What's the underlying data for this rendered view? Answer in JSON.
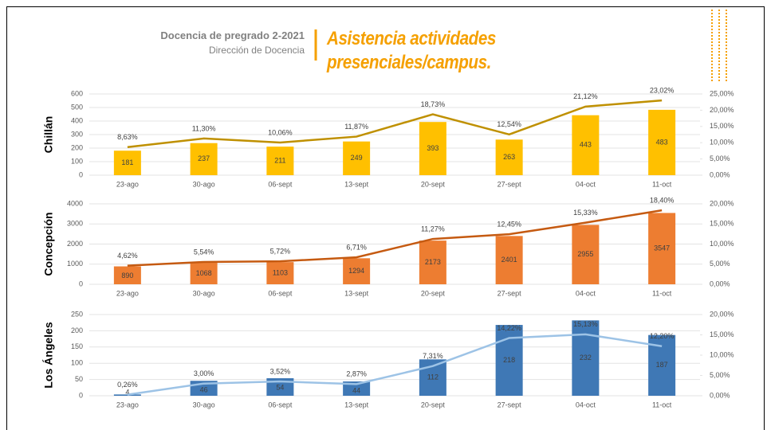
{
  "header": {
    "subtitle": "Docencia de pregrado 2-2021",
    "department": "Dirección de Docencia",
    "title": "Asistencia actividades presenciales/campus."
  },
  "chart_data": [
    {
      "type": "bar",
      "y_label": "Chillán",
      "categories": [
        "23-ago",
        "30-ago",
        "06-sept",
        "13-sept",
        "20-sept",
        "27-sept",
        "04-oct",
        "11-oct"
      ],
      "series": [
        {
          "color": "#ffc000",
          "values": [
            181,
            237,
            211,
            249,
            393,
            263,
            443,
            483
          ]
        },
        {
          "type": "line",
          "axis": "y2",
          "color": "#bf9000",
          "values": [
            8.63,
            11.3,
            10.06,
            11.87,
            18.73,
            12.54,
            21.12,
            23.02
          ],
          "value_labels": [
            "8,63%",
            "11,30%",
            "10,06%",
            "11,87%",
            "18,73%",
            "12,54%",
            "21,12%",
            "23,02%"
          ]
        }
      ],
      "ylim": [
        0,
        600
      ],
      "yticks": [
        0,
        100,
        200,
        300,
        400,
        500,
        600
      ],
      "y2lim": [
        0,
        25
      ],
      "y2ticks": [
        {
          "value": 0,
          "label": "0,00%"
        },
        {
          "value": 5,
          "label": "5,00%"
        },
        {
          "value": 10,
          "label": "10,00%"
        },
        {
          "value": 15,
          "label": "15,00%"
        },
        {
          "value": 20,
          "label": "20,00%"
        },
        {
          "value": 25,
          "label": "25,00%"
        }
      ],
      "grid": true
    },
    {
      "type": "bar",
      "y_label": "Concepción",
      "categories": [
        "23-ago",
        "30-ago",
        "06-sept",
        "13-sept",
        "20-sept",
        "27-sept",
        "04-oct",
        "11-oct"
      ],
      "series": [
        {
          "color": "#ed7d31",
          "values": [
            890,
            1068,
            1103,
            1294,
            2173,
            2401,
            2955,
            3547
          ]
        },
        {
          "type": "line",
          "axis": "y2",
          "color": "#c55a11",
          "values": [
            4.62,
            5.54,
            5.72,
            6.71,
            11.27,
            12.45,
            15.33,
            18.4
          ],
          "value_labels": [
            "4,62%",
            "5,54%",
            "5,72%",
            "6,71%",
            "11,27%",
            "12,45%",
            "15,33%",
            "18,40%"
          ]
        }
      ],
      "ylim": [
        0,
        4000
      ],
      "yticks": [
        0,
        1000,
        2000,
        3000,
        4000
      ],
      "y2lim": [
        0,
        20
      ],
      "y2ticks": [
        {
          "value": 0,
          "label": "0,00%"
        },
        {
          "value": 5,
          "label": "5,00%"
        },
        {
          "value": 10,
          "label": "10,00%"
        },
        {
          "value": 15,
          "label": "15,00%"
        },
        {
          "value": 20,
          "label": "20,00%"
        }
      ],
      "grid": true
    },
    {
      "type": "bar",
      "y_label": "Los Ángeles",
      "categories": [
        "23-ago",
        "30-ago",
        "06-sept",
        "13-sept",
        "20-sept",
        "27-sept",
        "04-oct",
        "11-oct"
      ],
      "series": [
        {
          "color": "#3f78b5",
          "values": [
            4,
            46,
            54,
            44,
            112,
            218,
            232,
            187
          ]
        },
        {
          "type": "line",
          "axis": "y2",
          "color": "#9dc3e6",
          "values": [
            0.26,
            3.0,
            3.52,
            2.87,
            7.31,
            14.22,
            15.13,
            12.2
          ],
          "value_labels": [
            "0,26%",
            "3,00%",
            "3,52%",
            "2,87%",
            "7,31%",
            "14,22%",
            "15,13%",
            "12,20%"
          ]
        }
      ],
      "ylim": [
        0,
        250
      ],
      "yticks": [
        0,
        50,
        100,
        150,
        200,
        250
      ],
      "y2lim": [
        0,
        20
      ],
      "y2ticks": [
        {
          "value": 0,
          "label": "0,00%"
        },
        {
          "value": 5,
          "label": "5,00%"
        },
        {
          "value": 10,
          "label": "10,00%"
        },
        {
          "value": 15,
          "label": "15,00%"
        },
        {
          "value": 20,
          "label": "20,00%"
        }
      ],
      "grid": true
    }
  ]
}
